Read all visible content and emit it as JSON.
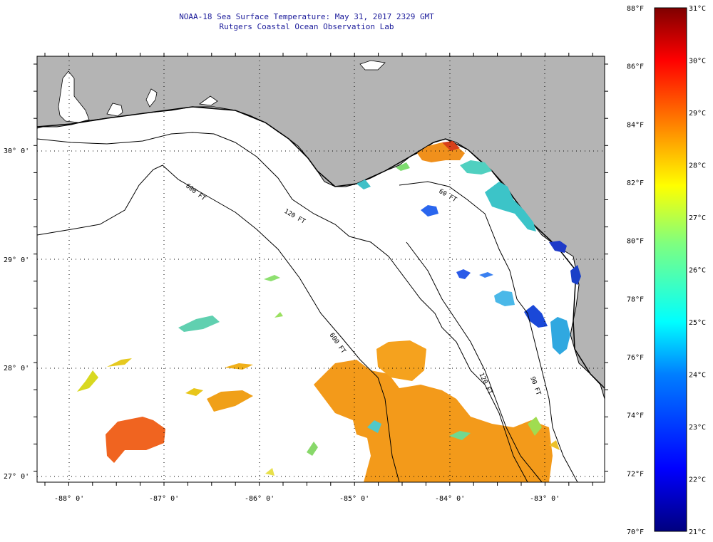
{
  "title": "NOAA-18 Sea Surface Temperature:  May 31, 2017 2329 GMT",
  "subtitle": "Rutgers Coastal Ocean Observation Lab",
  "map": {
    "lon_range": [
      -88.34,
      -82.24
    ],
    "lat_range": [
      26.92,
      30.82
    ],
    "lon_labels": [
      "-88° 0'",
      "-87° 0'",
      "-86° 0'",
      "-85° 0'",
      "-84° 0'",
      "-83° 0'"
    ],
    "lat_labels": [
      "30° 0'",
      "29° 0'",
      "28° 0'",
      "27° 0'"
    ],
    "contour_labels": [
      "120 FT",
      "600 FT",
      "600 FT",
      "120 FT",
      "90 FT",
      "60 FT"
    ],
    "land_color": "#b4b4b4",
    "ocean_color": "#ffffff",
    "grid": true
  },
  "colorbar": {
    "fahrenheit_labels": [
      "88°F",
      "86°F",
      "84°F",
      "82°F",
      "80°F",
      "78°F",
      "76°F",
      "74°F",
      "72°F",
      "70°F"
    ],
    "celsius_labels": [
      "31°C",
      "30°C",
      "29°C",
      "28°C",
      "27°C",
      "26°C",
      "25°C",
      "24°C",
      "23°C",
      "22°C",
      "21°C"
    ],
    "range_f": [
      70,
      88
    ],
    "range_c": [
      21,
      31
    ],
    "colors": [
      "#00007f",
      "#0000ff",
      "#007fff",
      "#00ffff",
      "#7fff7f",
      "#ffff00",
      "#ff7f00",
      "#ff0000",
      "#7f0000"
    ]
  }
}
